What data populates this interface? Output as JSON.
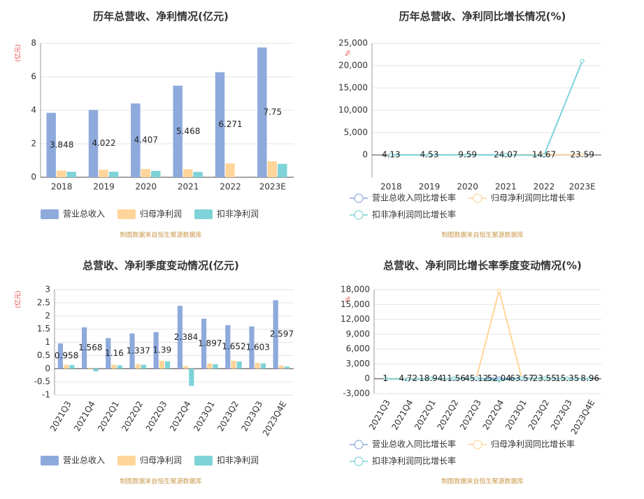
{
  "chart_data": [
    {
      "type": "bar",
      "title": "历年总营收、净利情况(亿元)",
      "unit": "(亿元)",
      "source": "制图数据来自恒生聚源数据库",
      "categories": [
        "2018",
        "2019",
        "2020",
        "2021",
        "2022",
        "2023E"
      ],
      "series": [
        {
          "name": "营业总收入",
          "color": "#8eaadc",
          "data_labels": true,
          "values": [
            3.848,
            4.022,
            4.407,
            5.468,
            6.271,
            7.75
          ]
        },
        {
          "name": "归母净利润",
          "color": "#ffd59a",
          "values": [
            0.4,
            0.45,
            0.5,
            0.48,
            0.83,
            0.95
          ]
        },
        {
          "name": "扣非净利润",
          "color": "#7dd3d8",
          "values": [
            0.33,
            0.33,
            0.38,
            0.32,
            0.004,
            0.8
          ]
        }
      ],
      "ylim": [
        0,
        8
      ],
      "yticks": [
        0,
        2,
        4,
        6,
        8
      ],
      "grid": true,
      "legend": "bottom"
    },
    {
      "type": "line",
      "title": "历年总营收、净利同比增长情况(%)",
      "unit": "%",
      "source": "制图数据来自恒生聚源数据库",
      "categories": [
        "2018",
        "2019",
        "2020",
        "2021",
        "2022",
        "2023E"
      ],
      "series": [
        {
          "name": "营业总收入同比增长率",
          "color": "#8eaadc",
          "data_labels": true,
          "values": [
            4.13,
            4.53,
            9.59,
            24.07,
            14.67,
            23.59
          ]
        },
        {
          "name": "归母净利润同比增长率",
          "color": "#ffd59a",
          "values": [
            20,
            10,
            11,
            -4,
            70,
            15
          ]
        },
        {
          "name": "扣非净利润同比增长率",
          "color": "#7dd3d8",
          "values": [
            5,
            1,
            15,
            -16,
            -98,
            21000
          ]
        }
      ],
      "ylim": [
        -5000,
        25000
      ],
      "yticks": [
        0,
        {
          "value": 5000,
          "label": "5,000"
        },
        {
          "value": 10000,
          "label": "10,000"
        },
        {
          "value": 15000,
          "label": "15,000"
        },
        {
          "value": 20000,
          "label": "20,000"
        },
        {
          "value": 25000,
          "label": "25,000"
        }
      ],
      "grid": true,
      "legend": "bottom"
    },
    {
      "type": "bar",
      "title": "总营收、净利季度变动情况(亿元)",
      "unit": "(亿元)",
      "source": "制图数据来自恒生聚源数据库",
      "categories": [
        "2021Q3",
        "2021Q4",
        "2022Q1",
        "2022Q2",
        "2022Q3",
        "2022Q4",
        "2023Q1",
        "2023Q2",
        "2023Q3",
        "2023Q4E"
      ],
      "series": [
        {
          "name": "营业总收入",
          "color": "#8eaadc",
          "data_labels": true,
          "values": [
            0.958,
            1.568,
            1.16,
            1.337,
            1.39,
            2.384,
            1.897,
            1.652,
            1.603,
            2.597
          ]
        },
        {
          "name": "归母净利润",
          "color": "#ffd59a",
          "values": [
            0.15,
            0.03,
            0.15,
            0.17,
            0.3,
            0.1,
            0.2,
            0.3,
            0.22,
            0.12
          ]
        },
        {
          "name": "扣非净利润",
          "color": "#7dd3d8",
          "values": [
            0.14,
            -0.1,
            0.13,
            0.15,
            0.28,
            -0.65,
            0.17,
            0.27,
            0.2,
            0.08
          ]
        }
      ],
      "ylim": [
        -1,
        3
      ],
      "yticks": [
        -1,
        -0.5,
        0,
        0.5,
        1,
        1.5,
        2,
        2.5,
        3
      ],
      "grid": true,
      "legend": "bottom"
    },
    {
      "type": "line",
      "title": "总营收、净利同比增长率季度变动情况(%)",
      "unit": "%",
      "source": "制图数据来自恒生聚源数据库",
      "categories": [
        "2021Q3",
        "2021Q4",
        "2022Q1",
        "2022Q2",
        "2022Q3",
        "2022Q4",
        "2023Q1",
        "2023Q2",
        "2023Q3",
        "2023Q4E"
      ],
      "series": [
        {
          "name": "营业总收入同比增长率",
          "color": "#8eaadc",
          "data_labels": true,
          "values": [
            1,
            4.72,
            18.94,
            11.56,
            45.12,
            52.04,
            63.57,
            23.55,
            15.35,
            8.96
          ]
        },
        {
          "name": "归母净利润同比增长率",
          "color": "#ffd59a",
          "values": [
            30,
            -60,
            20,
            10,
            100,
            17800,
            100,
            40,
            20,
            10
          ]
        },
        {
          "name": "扣非净利润同比增长率",
          "color": "#7dd3d8",
          "values": [
            25,
            -150,
            15,
            12,
            90,
            -300,
            80,
            35,
            18,
            8
          ]
        }
      ],
      "ylim": [
        -3000,
        18000
      ],
      "yticks": [
        {
          "value": -3000,
          "label": "-3,000"
        },
        0,
        {
          "value": 3000,
          "label": "3,000"
        },
        {
          "value": 6000,
          "label": "6,000"
        },
        {
          "value": 9000,
          "label": "9,000"
        },
        {
          "value": 12000,
          "label": "12,000"
        },
        {
          "value": 15000,
          "label": "15,000"
        },
        {
          "value": 18000,
          "label": "18,000"
        }
      ],
      "grid": true,
      "legend": "bottom"
    }
  ]
}
